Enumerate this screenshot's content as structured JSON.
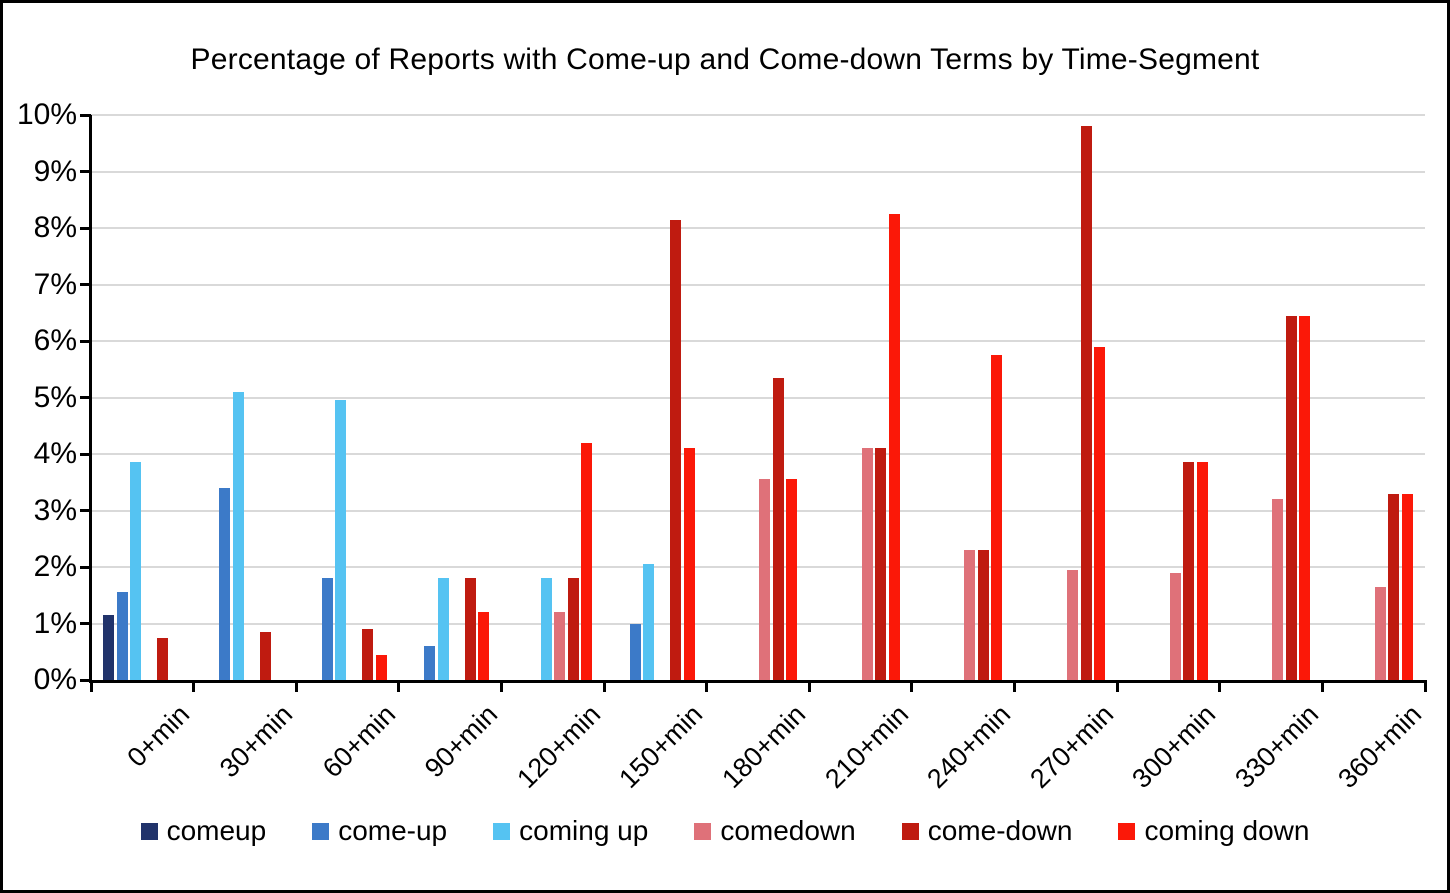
{
  "chart_data": {
    "type": "bar",
    "title": "Percentage of Reports with Come-up and Come-down Terms by Time-Segment",
    "categories": [
      "0+min",
      "30+min",
      "60+min",
      "90+min",
      "120+min",
      "150+min",
      "180+min",
      "210+min",
      "240+min",
      "270+min",
      "300+min",
      "330+min",
      "360+min"
    ],
    "series": [
      {
        "name": "comeup",
        "color": "#21336b",
        "values": [
          1.15,
          0,
          0,
          0,
          0,
          0,
          0,
          0,
          0,
          0,
          0,
          0,
          0
        ]
      },
      {
        "name": "come-up",
        "color": "#3c7ac8",
        "values": [
          1.55,
          3.4,
          1.8,
          0.6,
          0,
          1.0,
          0,
          0,
          0,
          0,
          0,
          0,
          0
        ]
      },
      {
        "name": "coming up",
        "color": "#55c3f2",
        "values": [
          3.85,
          5.1,
          4.95,
          1.8,
          1.8,
          2.05,
          0,
          0,
          0,
          0,
          0,
          0,
          0
        ]
      },
      {
        "name": "comedown",
        "color": "#df7179",
        "values": [
          0,
          0,
          0,
          0,
          1.2,
          0,
          3.55,
          4.1,
          2.3,
          1.95,
          1.9,
          3.2,
          1.65
        ]
      },
      {
        "name": "come-down",
        "color": "#bf1b10",
        "values": [
          0.75,
          0.85,
          0.9,
          1.8,
          1.8,
          8.15,
          5.35,
          4.1,
          2.3,
          9.8,
          3.85,
          6.45,
          3.3
        ]
      },
      {
        "name": "coming down",
        "color": "#fb1808",
        "values": [
          0,
          0,
          0.45,
          1.2,
          4.2,
          4.1,
          3.55,
          8.25,
          5.75,
          5.9,
          3.85,
          6.45,
          3.3
        ]
      }
    ],
    "xlabel": "",
    "ylabel": "",
    "y_axis": {
      "min": 0,
      "max": 10,
      "step": 1,
      "tick_labels": [
        "0%",
        "1%",
        "2%",
        "3%",
        "4%",
        "5%",
        "6%",
        "7%",
        "8%",
        "9%",
        "10%"
      ]
    },
    "grid": true,
    "gridline_color": "#d9d9d9",
    "axis_color": "#000000",
    "legend_position": "bottom"
  }
}
